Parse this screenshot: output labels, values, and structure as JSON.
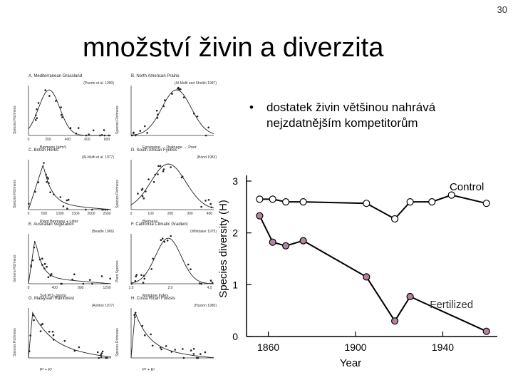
{
  "page_number": "30",
  "title": "množství živin a diverzita",
  "bullet": {
    "marker": "•",
    "text": "dostatek živin většinou nahrává nejzdatnějším kompetitorům"
  },
  "small_panels": [
    {
      "label": "A. Mediterranean Grassland",
      "cite": "(Puerto et al. 1990)",
      "ylabel": "Species Richness",
      "xlabel": "Biomass (g/m²)",
      "ticks": [
        "0",
        "200",
        "400",
        "600",
        "800"
      ]
    },
    {
      "label": "B. North American Prairie",
      "cite": "(Al-Mufti and Sheikh 1987)",
      "ylabel": "Species Richness",
      "xlabel": "Excessive ← Drainage → Poor",
      "ticks": []
    },
    {
      "label": "C. British Herbs",
      "cite": "(Al-Mufti et al. 1977)",
      "ylabel": "Species Richness",
      "xlabel": "Plant Biomass + Litter",
      "ticks": [
        "0",
        "500",
        "1000",
        "1500",
        "2000",
        "2500"
      ]
    },
    {
      "label": "D. South African Fynbos",
      "cite": "(Bond 1983)",
      "ylabel": "Species Richness",
      "xlabel": "Biomass",
      "ticks": [
        "0",
        "100",
        "200",
        "300",
        "400"
      ]
    },
    {
      "label": "E. Australian Vegetation",
      "cite": "(Beadle 1966)",
      "ylabel": "Genera Richness",
      "xlabel": "Soil PO₄ (ppm)",
      "ticks": [
        "0",
        "400",
        "800",
        "1200"
      ]
    },
    {
      "label": "F. California Climatic Gradient",
      "cite": "(Whittaker 1975)",
      "ylabel": "Plant Species",
      "xlabel": "Moisture Index",
      "ticks": [
        "1.0",
        "2.0",
        "4.0"
      ]
    },
    {
      "label": "G. Malaysian Rainforest",
      "cite": "(Ashton 1977)",
      "ylabel": "Species Richness",
      "xlabel": "P² + K²",
      "ticks": []
    },
    {
      "label": "H. Costa Rican Forests",
      "cite": "(Huston 1980)",
      "ylabel": "Species Richness",
      "xlabel": "P² + K²",
      "ticks": []
    }
  ],
  "chart_data": {
    "type": "line",
    "title": "",
    "xlabel": "Year",
    "ylabel": "Species diversity (H)",
    "xlim": [
      1850,
      1965
    ],
    "ylim": [
      0,
      3
    ],
    "xticks": [
      1860,
      1900,
      1940
    ],
    "yticks": [
      0,
      1,
      2,
      3
    ],
    "series": [
      {
        "name": "Control",
        "color": "#ffffff",
        "x": [
          1856,
          1862,
          1868,
          1876,
          1905,
          1918,
          1925,
          1935,
          1944,
          1960
        ],
        "y": [
          2.65,
          2.65,
          2.6,
          2.6,
          2.57,
          2.27,
          2.6,
          2.6,
          2.73,
          2.57
        ]
      },
      {
        "name": "Fertilized",
        "color": "#b3849f",
        "x": [
          1856,
          1862,
          1868,
          1876,
          1905,
          1918,
          1925,
          1960
        ],
        "y": [
          2.33,
          1.82,
          1.75,
          1.85,
          1.15,
          0.3,
          0.77,
          0.1
        ]
      }
    ]
  }
}
